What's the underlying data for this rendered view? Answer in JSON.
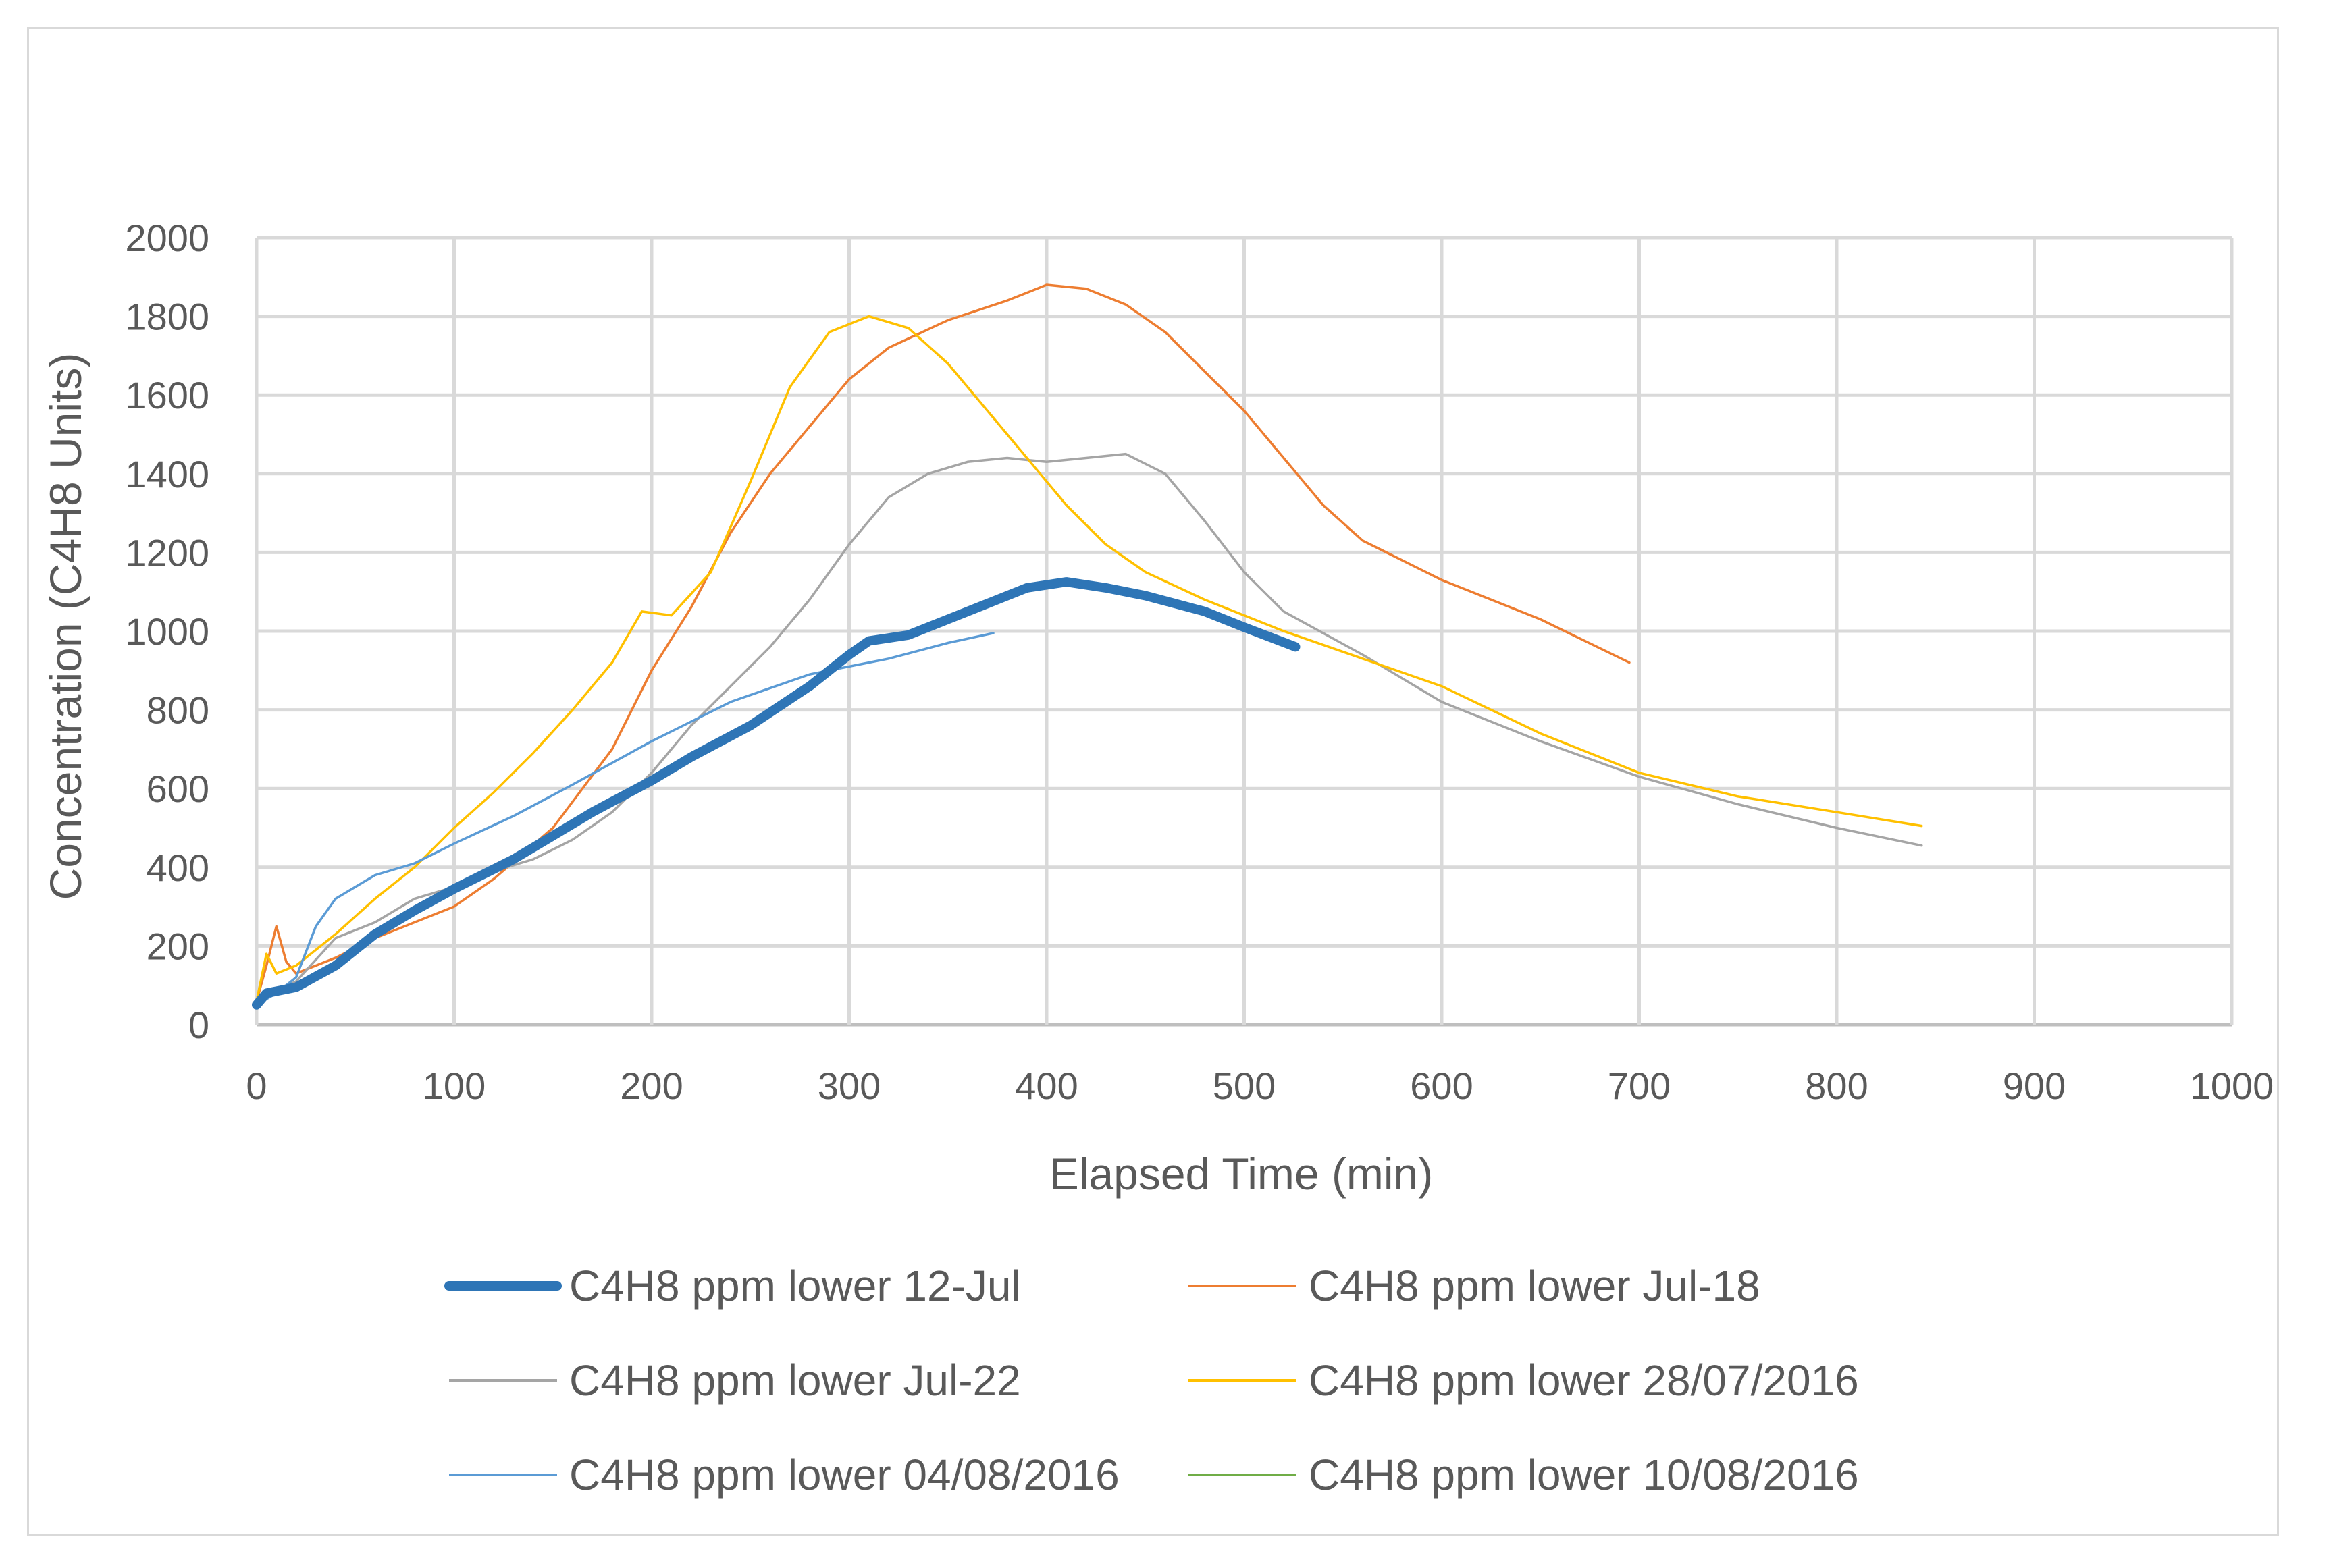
{
  "chart_data": {
    "type": "line",
    "title": "",
    "xlabel": "Elapsed Time (min)",
    "ylabel": "Concentration (C4H8 Units)",
    "xlim": [
      0,
      1000
    ],
    "ylim": [
      0,
      2000
    ],
    "x_ticks": [
      "0",
      "100",
      "200",
      "300",
      "400",
      "500",
      "600",
      "700",
      "800",
      "900",
      "1000"
    ],
    "y_ticks": [
      "0",
      "200",
      "400",
      "600",
      "800",
      "1000",
      "1200",
      "1400",
      "1600",
      "1800",
      "2000"
    ],
    "grid": true,
    "legend_position": "bottom",
    "series": [
      {
        "name": "C4H8 ppm lower 12-Jul",
        "color": "#2e75b6",
        "weight": "heavy",
        "points": [
          [
            0,
            50
          ],
          [
            5,
            80
          ],
          [
            20,
            95
          ],
          [
            40,
            150
          ],
          [
            60,
            230
          ],
          [
            80,
            290
          ],
          [
            100,
            345
          ],
          [
            130,
            420
          ],
          [
            150,
            480
          ],
          [
            170,
            540
          ],
          [
            200,
            620
          ],
          [
            220,
            680
          ],
          [
            250,
            760
          ],
          [
            280,
            860
          ],
          [
            300,
            940
          ],
          [
            310,
            975
          ],
          [
            330,
            990
          ],
          [
            350,
            1030
          ],
          [
            370,
            1070
          ],
          [
            390,
            1110
          ],
          [
            410,
            1125
          ],
          [
            430,
            1110
          ],
          [
            450,
            1090
          ],
          [
            480,
            1050
          ],
          [
            500,
            1010
          ],
          [
            526,
            960
          ]
        ]
      },
      {
        "name": "C4H8 ppm lower Jul-18",
        "color": "#ed7d31",
        "weight": "thin",
        "points": [
          [
            0,
            60
          ],
          [
            5,
            150
          ],
          [
            10,
            250
          ],
          [
            15,
            160
          ],
          [
            20,
            130
          ],
          [
            40,
            170
          ],
          [
            60,
            220
          ],
          [
            80,
            260
          ],
          [
            100,
            300
          ],
          [
            120,
            370
          ],
          [
            150,
            500
          ],
          [
            180,
            700
          ],
          [
            200,
            900
          ],
          [
            220,
            1060
          ],
          [
            240,
            1250
          ],
          [
            260,
            1400
          ],
          [
            280,
            1520
          ],
          [
            300,
            1640
          ],
          [
            320,
            1720
          ],
          [
            350,
            1790
          ],
          [
            380,
            1840
          ],
          [
            400,
            1880
          ],
          [
            420,
            1870
          ],
          [
            440,
            1830
          ],
          [
            460,
            1760
          ],
          [
            480,
            1660
          ],
          [
            500,
            1560
          ],
          [
            520,
            1440
          ],
          [
            540,
            1320
          ],
          [
            560,
            1230
          ],
          [
            600,
            1130
          ],
          [
            650,
            1030
          ],
          [
            695,
            920
          ]
        ]
      },
      {
        "name": "C4H8 ppm lower Jul-22",
        "color": "#a5a5a5",
        "weight": "thin",
        "points": [
          [
            0,
            60
          ],
          [
            20,
            110
          ],
          [
            40,
            220
          ],
          [
            60,
            260
          ],
          [
            80,
            320
          ],
          [
            100,
            350
          ],
          [
            120,
            390
          ],
          [
            140,
            420
          ],
          [
            160,
            470
          ],
          [
            180,
            540
          ],
          [
            200,
            640
          ],
          [
            220,
            760
          ],
          [
            240,
            860
          ],
          [
            260,
            960
          ],
          [
            280,
            1080
          ],
          [
            300,
            1220
          ],
          [
            320,
            1340
          ],
          [
            340,
            1400
          ],
          [
            360,
            1430
          ],
          [
            380,
            1440
          ],
          [
            400,
            1430
          ],
          [
            420,
            1440
          ],
          [
            440,
            1450
          ],
          [
            460,
            1400
          ],
          [
            480,
            1280
          ],
          [
            500,
            1150
          ],
          [
            520,
            1050
          ],
          [
            560,
            940
          ],
          [
            600,
            820
          ],
          [
            650,
            720
          ],
          [
            700,
            630
          ],
          [
            750,
            560
          ],
          [
            800,
            500
          ],
          [
            843,
            455
          ]
        ]
      },
      {
        "name": "C4H8 ppm lower 28/07/2016",
        "color": "#ffc000",
        "weight": "thin",
        "points": [
          [
            0,
            60
          ],
          [
            5,
            180
          ],
          [
            10,
            130
          ],
          [
            20,
            150
          ],
          [
            40,
            230
          ],
          [
            60,
            320
          ],
          [
            80,
            400
          ],
          [
            100,
            500
          ],
          [
            120,
            590
          ],
          [
            140,
            690
          ],
          [
            160,
            800
          ],
          [
            180,
            920
          ],
          [
            195,
            1050
          ],
          [
            210,
            1040
          ],
          [
            230,
            1150
          ],
          [
            250,
            1380
          ],
          [
            270,
            1620
          ],
          [
            290,
            1760
          ],
          [
            310,
            1800
          ],
          [
            330,
            1770
          ],
          [
            350,
            1680
          ],
          [
            370,
            1560
          ],
          [
            390,
            1440
          ],
          [
            410,
            1320
          ],
          [
            430,
            1220
          ],
          [
            450,
            1150
          ],
          [
            480,
            1080
          ],
          [
            520,
            1000
          ],
          [
            560,
            930
          ],
          [
            600,
            860
          ],
          [
            650,
            740
          ],
          [
            700,
            640
          ],
          [
            750,
            580
          ],
          [
            800,
            540
          ],
          [
            843,
            505
          ]
        ]
      },
      {
        "name": "C4H8 ppm lower 04/08/2016",
        "color": "#5b9bd5",
        "weight": "thin",
        "points": [
          [
            0,
            50
          ],
          [
            10,
            80
          ],
          [
            20,
            120
          ],
          [
            30,
            250
          ],
          [
            40,
            320
          ],
          [
            60,
            380
          ],
          [
            80,
            410
          ],
          [
            100,
            460
          ],
          [
            130,
            530
          ],
          [
            160,
            610
          ],
          [
            200,
            720
          ],
          [
            240,
            820
          ],
          [
            280,
            890
          ],
          [
            320,
            930
          ],
          [
            350,
            970
          ],
          [
            373,
            995
          ]
        ]
      },
      {
        "name": "C4H8 ppm lower 10/08/2016",
        "color": "#70ad47",
        "weight": "thin",
        "points": []
      }
    ]
  }
}
